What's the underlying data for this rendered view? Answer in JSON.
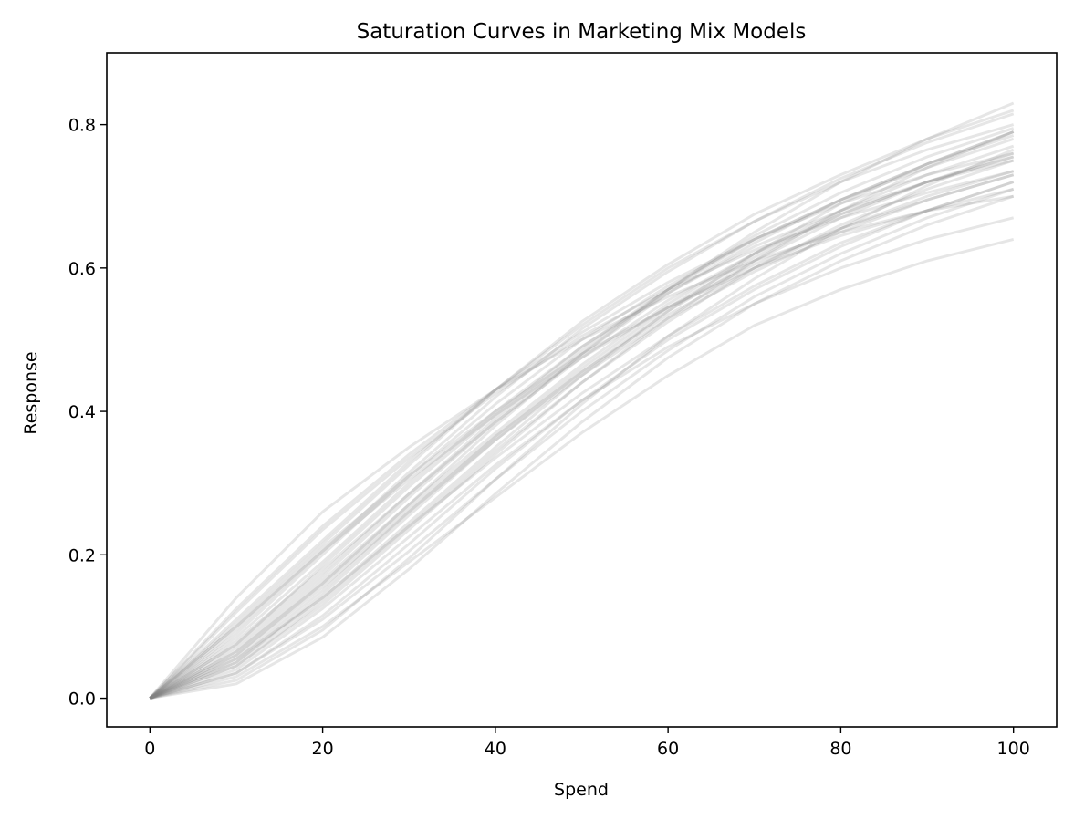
{
  "chart_data": {
    "type": "line",
    "title": "Saturation Curves in Marketing Mix Models",
    "xlabel": "Spend",
    "ylabel": "Response",
    "xlim": [
      -5,
      105
    ],
    "ylim": [
      -0.04,
      0.9
    ],
    "xticks": [
      "0",
      "20",
      "40",
      "60",
      "80",
      "100"
    ],
    "yticks": [
      "0.0",
      "0.2",
      "0.4",
      "0.6",
      "0.8"
    ],
    "grid": false,
    "legend": "none",
    "line_color": "#808080",
    "line_opacity": 0.2,
    "x": [
      0,
      10,
      20,
      30,
      40,
      50,
      60,
      70,
      80,
      90,
      100
    ],
    "series": [
      {
        "values": [
          0,
          0.105,
          0.215,
          0.325,
          0.43,
          0.525,
          0.605,
          0.675,
          0.73,
          0.78,
          0.82
        ]
      },
      {
        "values": [
          0,
          0.075,
          0.185,
          0.295,
          0.395,
          0.49,
          0.57,
          0.64,
          0.695,
          0.745,
          0.785
        ]
      },
      {
        "values": [
          0,
          0.05,
          0.145,
          0.255,
          0.36,
          0.455,
          0.54,
          0.61,
          0.67,
          0.72,
          0.76
        ]
      },
      {
        "values": [
          0,
          0.035,
          0.115,
          0.215,
          0.32,
          0.415,
          0.5,
          0.57,
          0.63,
          0.68,
          0.72
        ]
      },
      {
        "values": [
          0,
          0.02,
          0.085,
          0.18,
          0.285,
          0.385,
          0.475,
          0.55,
          0.61,
          0.66,
          0.7
        ]
      },
      {
        "values": [
          0,
          0.14,
          0.26,
          0.35,
          0.43,
          0.5,
          0.56,
          0.61,
          0.65,
          0.68,
          0.7
        ]
      },
      {
        "values": [
          0,
          0.125,
          0.24,
          0.34,
          0.43,
          0.51,
          0.58,
          0.64,
          0.695,
          0.74,
          0.78
        ]
      },
      {
        "values": [
          0,
          0.06,
          0.16,
          0.27,
          0.38,
          0.48,
          0.57,
          0.65,
          0.72,
          0.78,
          0.83
        ]
      },
      {
        "values": [
          0,
          0.09,
          0.2,
          0.31,
          0.41,
          0.5,
          0.575,
          0.64,
          0.69,
          0.73,
          0.76
        ]
      },
      {
        "values": [
          0,
          0.1,
          0.21,
          0.31,
          0.4,
          0.48,
          0.545,
          0.6,
          0.645,
          0.68,
          0.71
        ]
      },
      {
        "values": [
          0,
          0.04,
          0.125,
          0.225,
          0.325,
          0.415,
          0.49,
          0.55,
          0.6,
          0.64,
          0.67
        ]
      },
      {
        "values": [
          0,
          0.03,
          0.1,
          0.19,
          0.28,
          0.37,
          0.45,
          0.52,
          0.57,
          0.61,
          0.64
        ]
      },
      {
        "values": [
          0,
          0.07,
          0.17,
          0.28,
          0.385,
          0.48,
          0.565,
          0.635,
          0.695,
          0.745,
          0.79
        ]
      },
      {
        "values": [
          0,
          0.085,
          0.19,
          0.3,
          0.4,
          0.49,
          0.565,
          0.63,
          0.68,
          0.72,
          0.75
        ]
      },
      {
        "values": [
          0,
          0.055,
          0.15,
          0.26,
          0.365,
          0.46,
          0.545,
          0.615,
          0.675,
          0.72,
          0.755
        ]
      },
      {
        "values": [
          0,
          0.11,
          0.22,
          0.33,
          0.43,
          0.52,
          0.6,
          0.665,
          0.72,
          0.765,
          0.8
        ]
      },
      {
        "values": [
          0,
          0.045,
          0.135,
          0.24,
          0.345,
          0.44,
          0.525,
          0.6,
          0.66,
          0.71,
          0.75
        ]
      },
      {
        "values": [
          0,
          0.065,
          0.16,
          0.265,
          0.365,
          0.455,
          0.535,
          0.6,
          0.655,
          0.7,
          0.735
        ]
      },
      {
        "values": [
          0,
          0.025,
          0.095,
          0.195,
          0.305,
          0.41,
          0.505,
          0.585,
          0.655,
          0.715,
          0.765
        ]
      },
      {
        "values": [
          0,
          0.08,
          0.18,
          0.285,
          0.385,
          0.475,
          0.555,
          0.62,
          0.675,
          0.72,
          0.755
        ]
      },
      {
        "values": [
          0,
          0.095,
          0.205,
          0.315,
          0.42,
          0.515,
          0.595,
          0.665,
          0.725,
          0.775,
          0.815
        ]
      },
      {
        "values": [
          0,
          0.06,
          0.155,
          0.26,
          0.36,
          0.45,
          0.53,
          0.595,
          0.65,
          0.695,
          0.73
        ]
      },
      {
        "values": [
          0,
          0.045,
          0.13,
          0.235,
          0.34,
          0.44,
          0.53,
          0.61,
          0.68,
          0.74,
          0.79
        ]
      },
      {
        "values": [
          0,
          0.12,
          0.235,
          0.335,
          0.425,
          0.505,
          0.57,
          0.625,
          0.67,
          0.705,
          0.735
        ]
      },
      {
        "values": [
          0,
          0.035,
          0.11,
          0.205,
          0.305,
          0.4,
          0.485,
          0.56,
          0.62,
          0.67,
          0.71
        ]
      },
      {
        "values": [
          0,
          0.075,
          0.175,
          0.285,
          0.39,
          0.485,
          0.57,
          0.645,
          0.705,
          0.755,
          0.795
        ]
      },
      {
        "values": [
          0,
          0.055,
          0.14,
          0.24,
          0.335,
          0.425,
          0.505,
          0.575,
          0.635,
          0.68,
          0.72
        ]
      },
      {
        "values": [
          0,
          0.1,
          0.205,
          0.305,
          0.395,
          0.475,
          0.545,
          0.605,
          0.655,
          0.695,
          0.73
        ]
      },
      {
        "values": [
          0,
          0.065,
          0.165,
          0.27,
          0.37,
          0.465,
          0.55,
          0.62,
          0.68,
          0.73,
          0.77
        ]
      },
      {
        "values": [
          0,
          0.05,
          0.14,
          0.245,
          0.35,
          0.45,
          0.54,
          0.62,
          0.69,
          0.745,
          0.79
        ]
      }
    ]
  }
}
